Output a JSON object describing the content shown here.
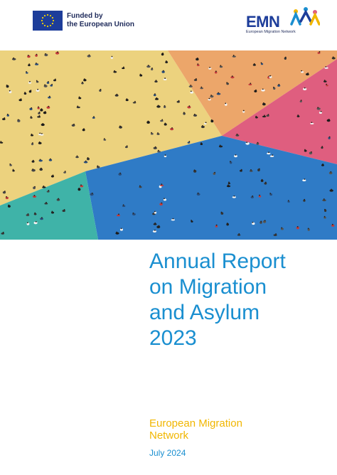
{
  "header": {
    "eu_badge": {
      "line1": "Funded by",
      "line2": "the European Union",
      "flag_icon": "eu-flag-icon"
    },
    "emn_logo": {
      "acronym": "EMN",
      "subtitle": "European Migration Network",
      "icon": "people-stars-icon"
    }
  },
  "cover": {
    "title_lines": [
      "Annual Report",
      "on Migration",
      "and Asylum",
      "2023"
    ],
    "organization_lines": [
      "European Migration",
      "Network"
    ],
    "date": "July 2024"
  },
  "colors": {
    "title": "#1a8fd0",
    "organization": "#f1b600",
    "eu_blue": "#1d3d9a",
    "hero_yellow": "#ecd27e",
    "hero_orange": "#eca66a",
    "hero_pink": "#df5e7f",
    "hero_blue": "#2f7bc6",
    "hero_teal": "#3fb3a8"
  }
}
